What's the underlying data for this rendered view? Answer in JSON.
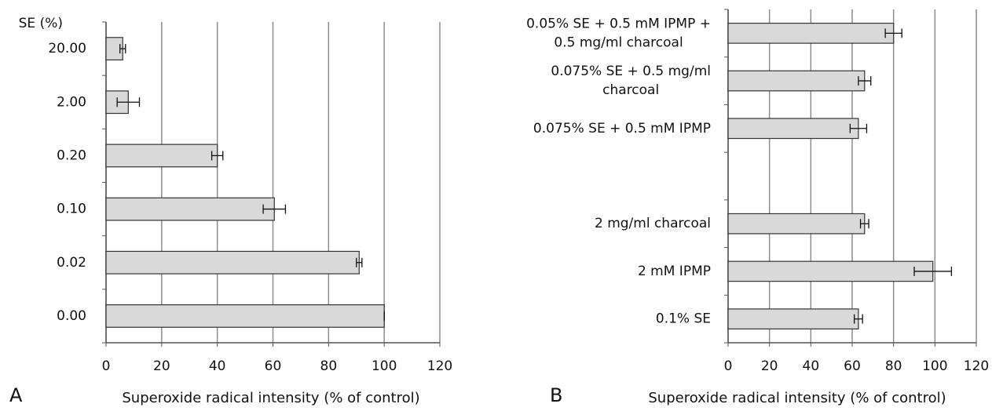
{
  "chart_data": [
    {
      "type": "bar",
      "orientation": "horizontal",
      "panel_label": "A",
      "y_label": "SE (%)",
      "x_label": "Superoxide radical intensity (% of control)",
      "categories": [
        "20.00",
        "2.00",
        "0.20",
        "0.10",
        "0.02",
        "0.00"
      ],
      "values": [
        6,
        8,
        40,
        60.5,
        91,
        100
      ],
      "errors": [
        1,
        4,
        2,
        4,
        1,
        0
      ],
      "color": "#d9d9d9",
      "xlim": [
        0,
        120
      ],
      "xticks": [
        0,
        20,
        40,
        60,
        80,
        100,
        120
      ],
      "grid": true
    },
    {
      "type": "bar",
      "orientation": "horizontal",
      "panel_label": "B",
      "x_label": "Superoxide radical intensity (% of control)",
      "categories": [
        "0.05% SE + 0.5 mM IPMP + 0.5 mg/ml charcoal",
        "0.075% SE + 0.5 mg/ml charcoal",
        "0.075% SE + 0.5 mM IPMP",
        null,
        "2 mg/ml charcoal",
        "2 mM IPMP",
        "0.1% SE"
      ],
      "values": [
        80,
        66,
        63,
        null,
        66,
        99,
        63
      ],
      "errors": [
        4,
        3,
        4,
        null,
        2,
        9,
        2
      ],
      "color": "#d9d9d9",
      "xlim": [
        0,
        120
      ],
      "xticks": [
        0,
        20,
        40,
        60,
        80,
        100,
        120
      ],
      "grid": true
    }
  ]
}
